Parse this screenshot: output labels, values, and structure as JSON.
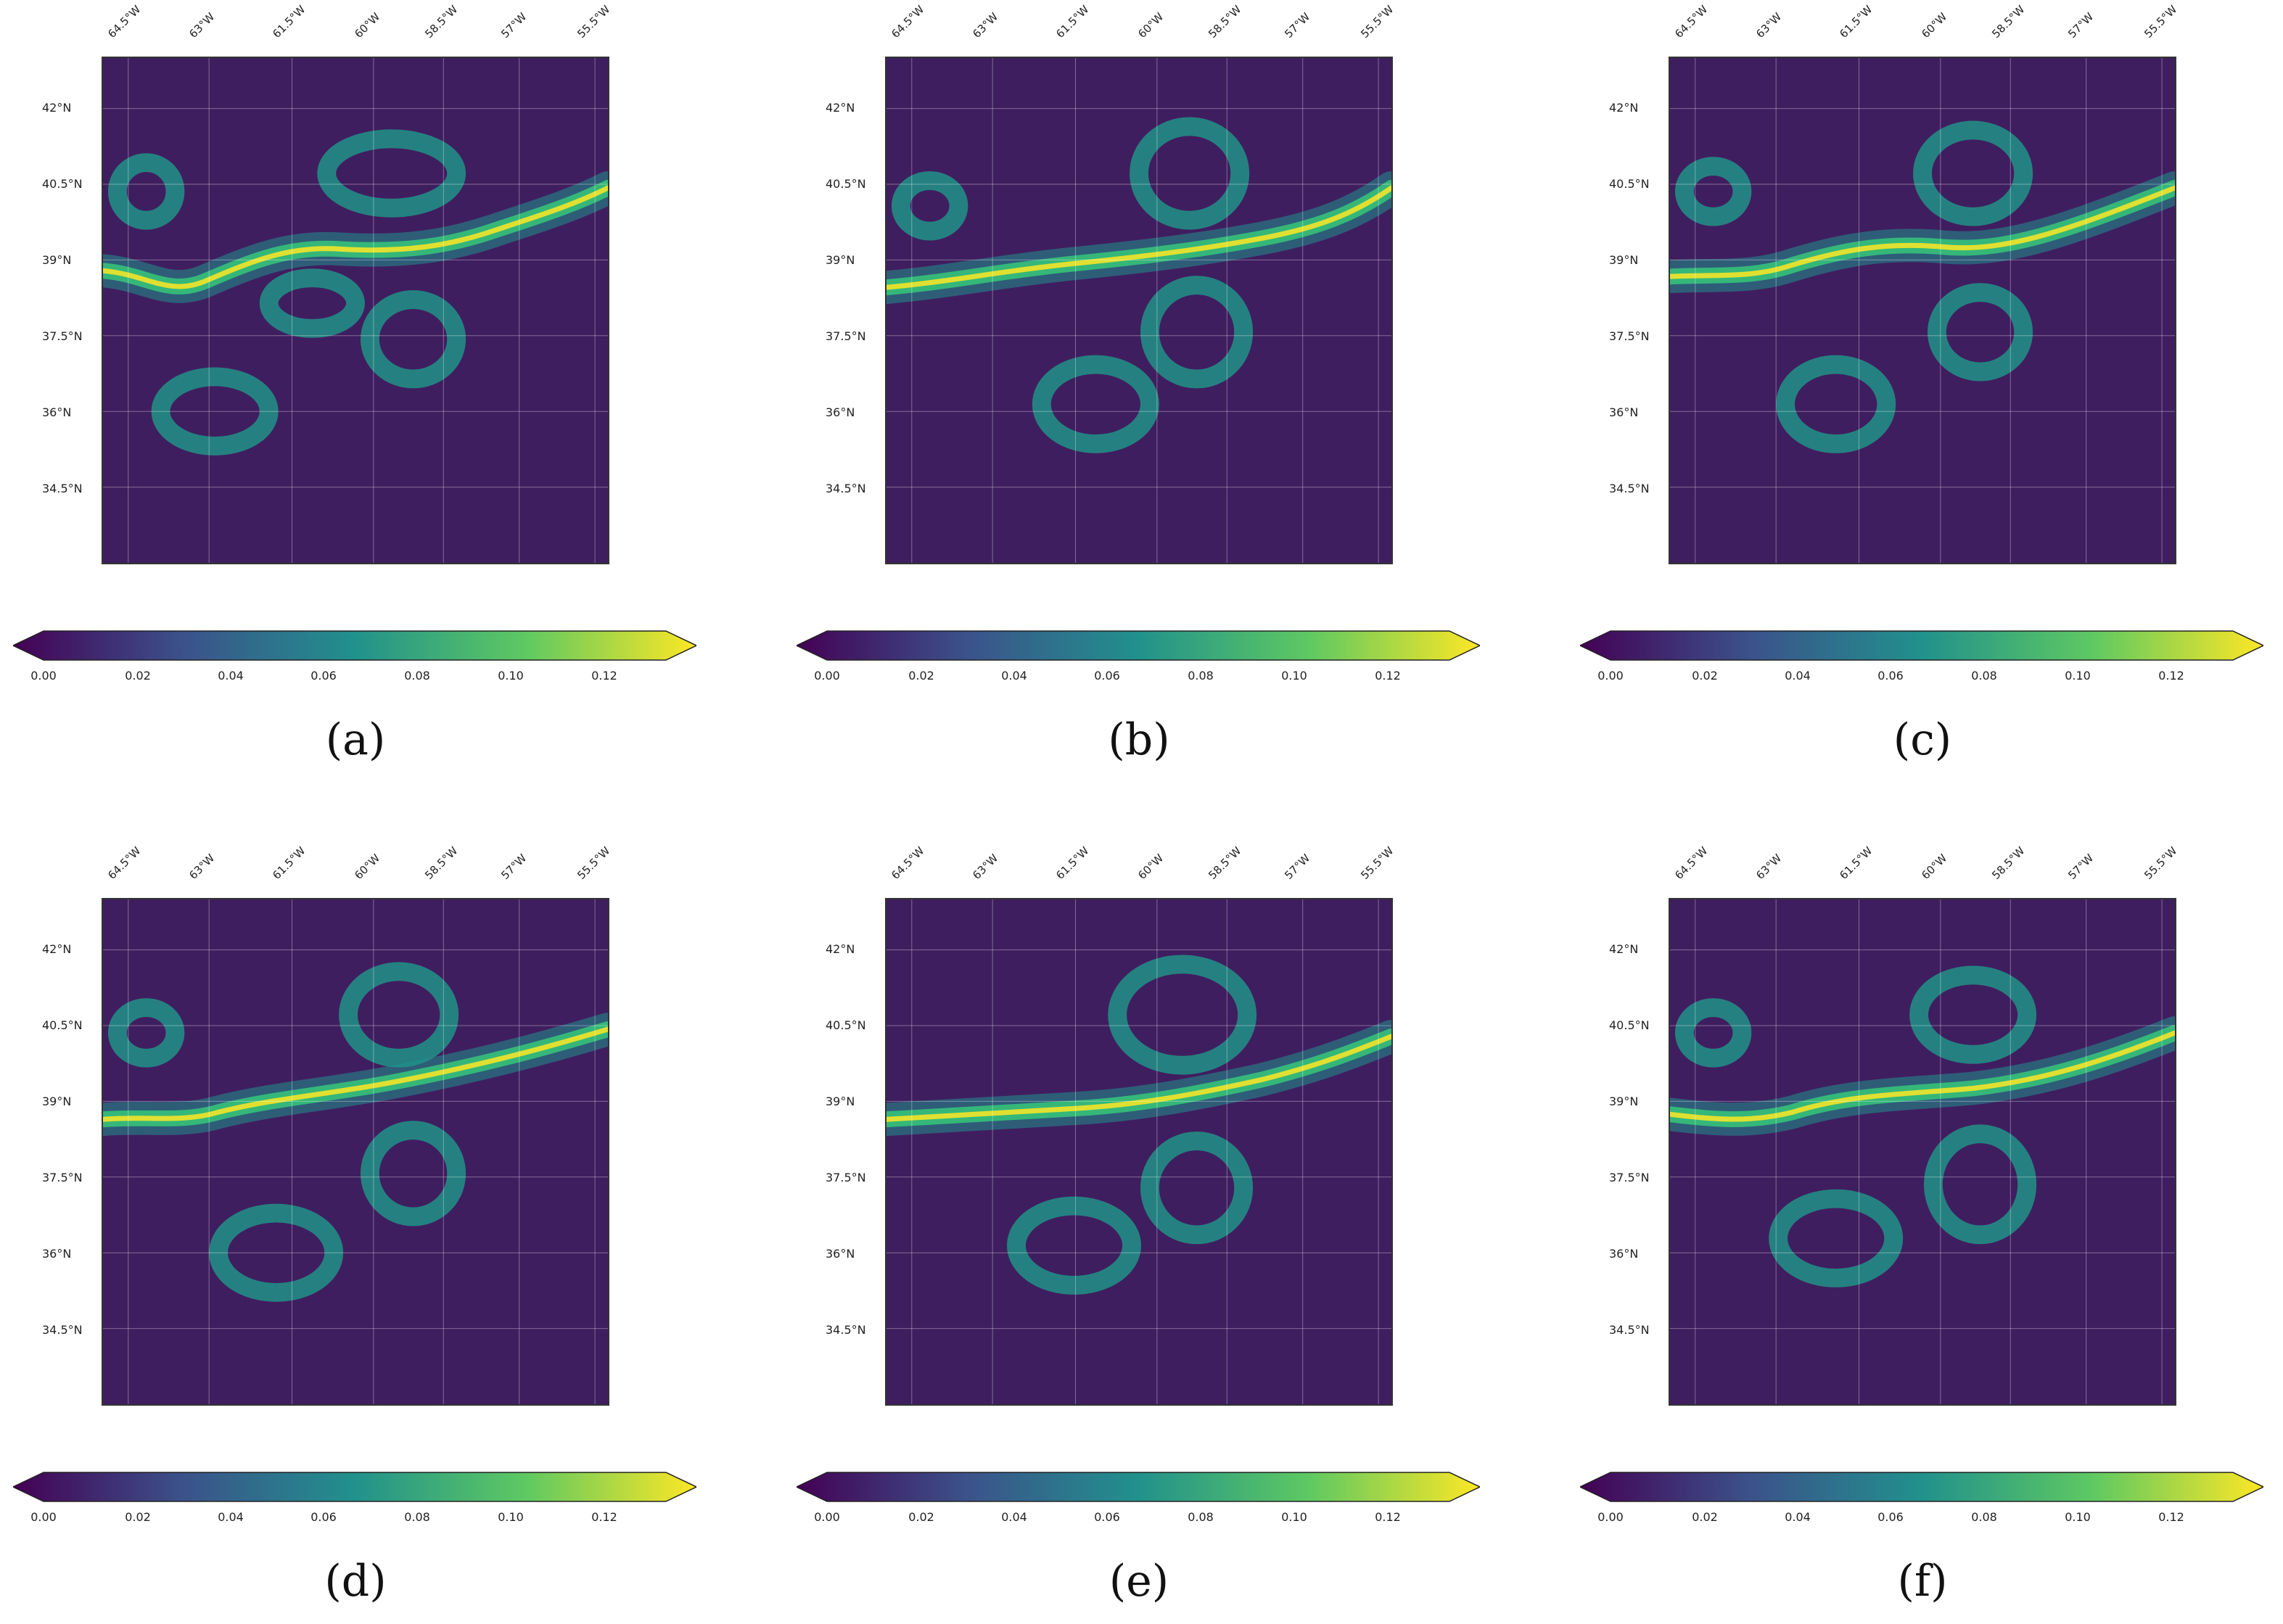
{
  "panels": [
    {
      "label": "(a)"
    },
    {
      "label": "(b)"
    },
    {
      "label": "(c)"
    },
    {
      "label": "(d)"
    },
    {
      "label": "(e)"
    },
    {
      "label": "(f)"
    }
  ],
  "map": {
    "lon_ticks": [
      "64.5°W",
      "63°W",
      "61.5°W",
      "60°W",
      "58.5°W",
      "57°W",
      "55.5°W"
    ],
    "lat_ticks": [
      "42°N",
      "40.5°N",
      "39°N",
      "37.5°N",
      "36°N",
      "34.5°N"
    ],
    "colormap": "viridis",
    "colormap_stops": [
      "#440154",
      "#3b528b",
      "#21918c",
      "#5ec962",
      "#fde725"
    ]
  },
  "colorbar": {
    "ticks": [
      "0.00",
      "0.02",
      "0.04",
      "0.06",
      "0.08",
      "0.10",
      "0.12"
    ],
    "range": [
      0,
      0.135
    ],
    "extend": "both"
  }
}
